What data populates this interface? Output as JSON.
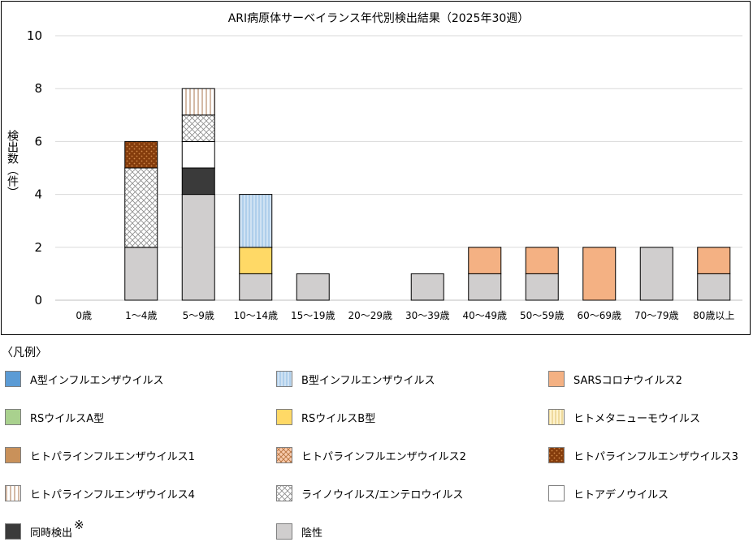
{
  "chart_data": {
    "type": "bar",
    "stacked": true,
    "title": "ARI病原体サーベイランス年代別検出結果（2025年30週）",
    "xlabel": "",
    "ylabel": "検出数（件）",
    "ylim": [
      0,
      10
    ],
    "yticks": [
      0,
      2,
      4,
      6,
      8,
      10
    ],
    "grid": true,
    "categories": [
      "0歳",
      "1～4歳",
      "5～9歳",
      "10～14歳",
      "15～19歳",
      "20～29歳",
      "30～39歳",
      "40～49歳",
      "50～59歳",
      "60～69歳",
      "70～79歳",
      "80歳以上"
    ],
    "series": [
      {
        "name": "陰性",
        "key": "negative",
        "values": [
          0,
          2,
          4,
          1,
          1,
          0,
          1,
          1,
          1,
          0,
          2,
          1
        ]
      },
      {
        "name": "同時検出",
        "key": "coinfection",
        "values": [
          0,
          0,
          1,
          0,
          0,
          0,
          0,
          0,
          0,
          0,
          0,
          0
        ]
      },
      {
        "name": "ヒトアデノウイルス",
        "key": "adeno",
        "values": [
          0,
          0,
          1,
          0,
          0,
          0,
          0,
          0,
          0,
          0,
          0,
          0
        ]
      },
      {
        "name": "ライノウイルス/エンテロウイルス",
        "key": "rhino",
        "values": [
          0,
          3,
          1,
          0,
          0,
          0,
          0,
          0,
          0,
          0,
          0,
          0
        ]
      },
      {
        "name": "ヒトパラインフルエンザウイルス4",
        "key": "hpiv4",
        "values": [
          0,
          0,
          1,
          0,
          0,
          0,
          0,
          0,
          0,
          0,
          0,
          0
        ]
      },
      {
        "name": "ヒトパラインフルエンザウイルス3",
        "key": "hpiv3",
        "values": [
          0,
          1,
          0,
          0,
          0,
          0,
          0,
          0,
          0,
          0,
          0,
          0
        ]
      },
      {
        "name": "RSウイルスB型",
        "key": "rsvb",
        "values": [
          0,
          0,
          0,
          1,
          0,
          0,
          0,
          0,
          0,
          0,
          0,
          0
        ]
      },
      {
        "name": "B型インフルエンザウイルス",
        "key": "flub",
        "values": [
          0,
          0,
          0,
          2,
          0,
          0,
          0,
          0,
          0,
          0,
          0,
          0
        ]
      },
      {
        "name": "SARSコロナウイルス2",
        "key": "sars",
        "values": [
          0,
          0,
          0,
          0,
          0,
          0,
          0,
          1,
          1,
          2,
          0,
          1
        ]
      }
    ],
    "legend_position": "bottom"
  },
  "legend": {
    "title": "〈凡例〉",
    "items": [
      {
        "label": "A型インフルエンザウイルス",
        "key": "flua"
      },
      {
        "label": "B型インフルエンザウイルス",
        "key": "flub"
      },
      {
        "label": "SARSコロナウイルス2",
        "key": "sars"
      },
      {
        "label": "RSウイルスA型",
        "key": "rsva"
      },
      {
        "label": "RSウイルスB型",
        "key": "rsvb"
      },
      {
        "label": "ヒトメタニューモウイルス",
        "key": "hmpv"
      },
      {
        "label": "ヒトパラインフルエンザウイルス1",
        "key": "hpiv1"
      },
      {
        "label": "ヒトパラインフルエンザウイルス2",
        "key": "hpiv2"
      },
      {
        "label": "ヒトパラインフルエンザウイルス3",
        "key": "hpiv3"
      },
      {
        "label": "ヒトパラインフルエンザウイルス4",
        "key": "hpiv4"
      },
      {
        "label": "ライノウイルス/エンテロウイルス",
        "key": "rhino"
      },
      {
        "label": "ヒトアデノウイルス",
        "key": "adeno"
      },
      {
        "label": "同時検出",
        "key": "coinfection",
        "note": "※"
      },
      {
        "label": "陰性",
        "key": "negative"
      }
    ]
  },
  "colors": {
    "flua": "#5b9bd5",
    "flub": "#cfe2f3",
    "sars": "#f4b183",
    "rsva": "#a9d18e",
    "rsvb": "#ffd966",
    "hmpv": "#fff2cc",
    "hpiv1": "#c9915a",
    "hpiv2": "#f8cbad",
    "hpiv3": "#843c0c",
    "hpiv4": "#f2dcc9",
    "rhino": "#ffffff",
    "adeno": "#ffffff",
    "coinfection": "#3a3a3a",
    "negative": "#d0cece",
    "grid": "#d9d9d9",
    "border": "#000000"
  }
}
